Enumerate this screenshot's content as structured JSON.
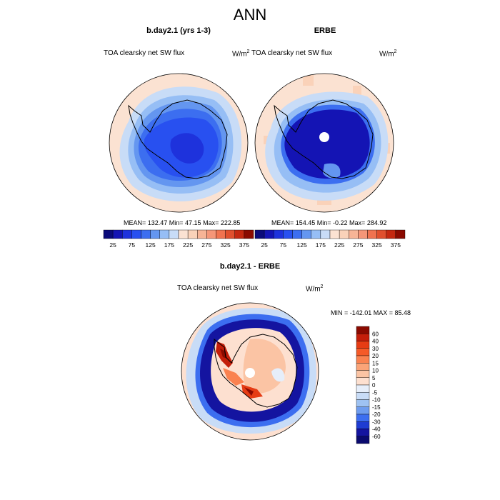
{
  "main_title": "ANN",
  "panels": [
    {
      "title": "b.day2.1 (yrs 1-3)",
      "variable": "TOA clearsky net SW flux",
      "units_base": "W/m",
      "units_exp": "2",
      "stats": "MEAN= 132.47  Min=  47.15  Max= 222.85"
    },
    {
      "title": "ERBE",
      "variable": "TOA clearsky net SW flux",
      "units_base": "W/m",
      "units_exp": "2",
      "stats": "MEAN= 154.45  Min=  -0.22  Max= 284.92"
    }
  ],
  "colorbar_labels": [
    "25",
    "75",
    "125",
    "175",
    "225",
    "275",
    "325",
    "375"
  ],
  "colorbar_colors": [
    "#0a0a7a",
    "#1414b4",
    "#1e32dc",
    "#2850f0",
    "#3c6ef0",
    "#6496f0",
    "#96bef5",
    "#c8dcf7",
    "#fbe2d2",
    "#fad2b9",
    "#f7b496",
    "#f59678",
    "#f07350",
    "#e0502e",
    "#c42810",
    "#8a0a00"
  ],
  "diff_panel": {
    "title": "b.day2.1 - ERBE",
    "variable": "TOA clearsky net SW flux",
    "units_base": "W/m",
    "units_exp": "2",
    "minmax": "MIN = -142.01  MAX =  85.48",
    "levels": [
      "60",
      "40",
      "30",
      "20",
      "15",
      "10",
      "5",
      "0",
      "-5",
      "-10",
      "-15",
      "-20",
      "-30",
      "-40",
      "-60"
    ],
    "colors": [
      "#8a0a00",
      "#c41e0a",
      "#e63c14",
      "#f55a28",
      "#fa8250",
      "#fba478",
      "#fbc4a4",
      "#fde0d0",
      "#e6eefa",
      "#c8dcf7",
      "#9ec2f2",
      "#6e9cee",
      "#3c6ef0",
      "#1e3cd2",
      "#1414a0",
      "#0a0a6e"
    ]
  }
}
